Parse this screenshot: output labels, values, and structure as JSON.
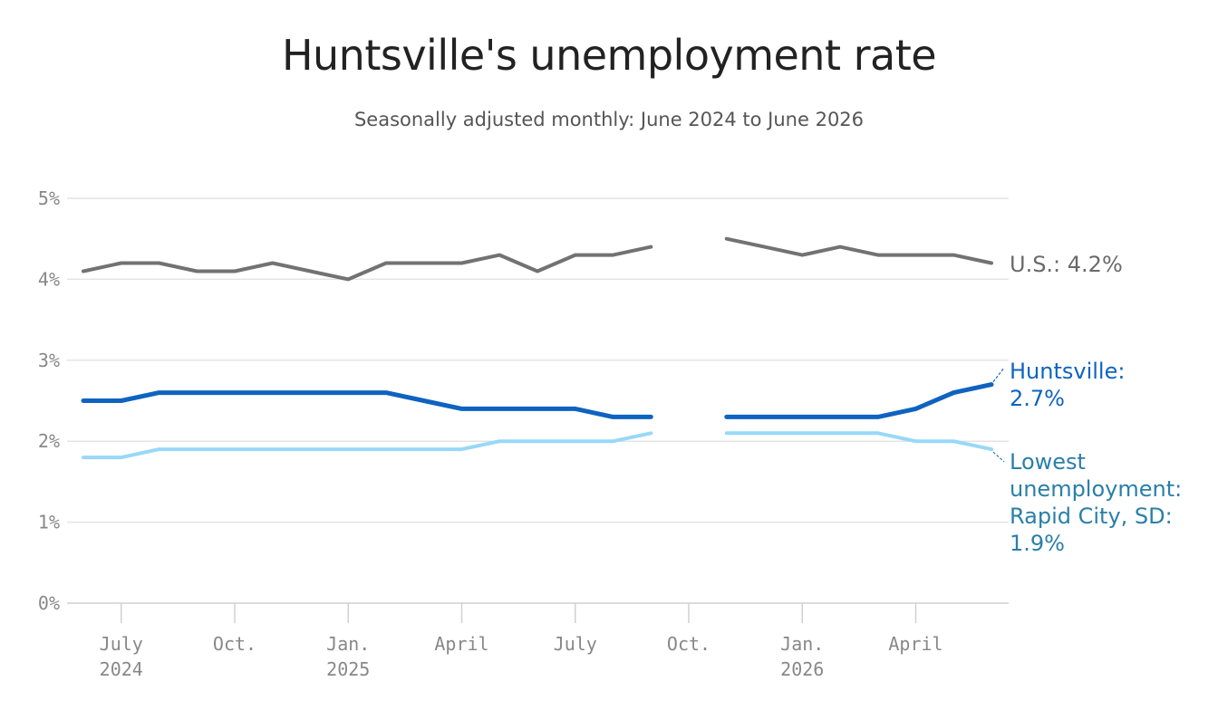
{
  "chart_data": {
    "type": "line",
    "title": "Huntsville's unemployment rate",
    "subtitle": "Seasonally adjusted monthly: June 2024 to June 2026",
    "xlabel": "",
    "ylabel": "",
    "ylim": [
      0,
      5
    ],
    "yticks": [
      {
        "value": 0,
        "label": "0%"
      },
      {
        "value": 1,
        "label": "1%"
      },
      {
        "value": 2,
        "label": "2%"
      },
      {
        "value": 3,
        "label": "3%"
      },
      {
        "value": 4,
        "label": "4%"
      },
      {
        "value": 5,
        "label": "5%"
      }
    ],
    "x": [
      "2024-06",
      "2024-07",
      "2024-08",
      "2024-09",
      "2024-10",
      "2024-11",
      "2024-12",
      "2025-01",
      "2025-02",
      "2025-03",
      "2025-04",
      "2025-05",
      "2025-06",
      "2025-07",
      "2025-08",
      "2025-09",
      "2025-10",
      "2025-11",
      "2025-12",
      "2026-01",
      "2026-02",
      "2026-03",
      "2026-04",
      "2026-05",
      "2026-06"
    ],
    "xticks": [
      {
        "x": "2024-07",
        "line1": "July",
        "line2": "2024"
      },
      {
        "x": "2024-10",
        "line1": "Oct.",
        "line2": ""
      },
      {
        "x": "2025-01",
        "line1": "Jan.",
        "line2": "2025"
      },
      {
        "x": "2025-04",
        "line1": "April",
        "line2": ""
      },
      {
        "x": "2025-07",
        "line1": "July",
        "line2": ""
      },
      {
        "x": "2025-10",
        "line1": "Oct.",
        "line2": ""
      },
      {
        "x": "2026-01",
        "line1": "Jan.",
        "line2": "2026"
      },
      {
        "x": "2026-04",
        "line1": "April",
        "line2": ""
      }
    ],
    "grid": true,
    "series": [
      {
        "name": "U.S.",
        "color": "#727272",
        "values": [
          4.1,
          4.2,
          4.2,
          4.1,
          4.1,
          4.2,
          4.1,
          4.0,
          4.2,
          4.2,
          4.2,
          4.3,
          4.1,
          4.3,
          4.3,
          4.4,
          null,
          4.5,
          4.4,
          4.3,
          4.4,
          4.3,
          4.3,
          4.3,
          4.2
        ],
        "label_lines": [
          "U.S.: 4.2%"
        ]
      },
      {
        "name": "Huntsville",
        "color": "#0f63c0",
        "values": [
          2.5,
          2.5,
          2.6,
          2.6,
          2.6,
          2.6,
          2.6,
          2.6,
          2.6,
          2.5,
          2.4,
          2.4,
          2.4,
          2.4,
          2.3,
          2.3,
          null,
          2.3,
          2.3,
          2.3,
          2.3,
          2.3,
          2.4,
          2.6,
          2.7
        ],
        "label_lines": [
          "Huntsville:",
          "2.7%"
        ]
      },
      {
        "name": "Lowest unemployment: Rapid City, SD",
        "color": "#98d8f8",
        "label_color": "#2a7fa8",
        "values": [
          1.8,
          1.8,
          1.9,
          1.9,
          1.9,
          1.9,
          1.9,
          1.9,
          1.9,
          1.9,
          1.9,
          2.0,
          2.0,
          2.0,
          2.0,
          2.1,
          null,
          2.1,
          2.1,
          2.1,
          2.1,
          2.1,
          2.0,
          2.0,
          1.9
        ],
        "label_lines": [
          "Lowest",
          "unemployment:",
          "Rapid City, SD:",
          "1.9%"
        ]
      }
    ]
  }
}
